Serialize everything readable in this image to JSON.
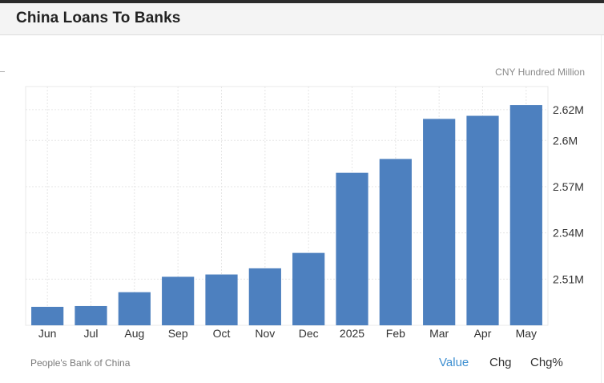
{
  "header": {
    "title": "China Loans To Banks"
  },
  "unit_label": "CNY Hundred Million",
  "source": "People's Bank of China",
  "tabs": [
    {
      "label": "Value",
      "active": true
    },
    {
      "label": "Chg",
      "active": false
    },
    {
      "label": "Chg%",
      "active": false
    }
  ],
  "colors": {
    "bar": "#4d80bf",
    "active_tab": "#3d8fd1",
    "grid": "#e6e6e6"
  },
  "chart_data": {
    "type": "bar",
    "title": "China Loans To Banks",
    "ylabel": "CNY Hundred Million",
    "categories": [
      "Jun",
      "Jul",
      "Aug",
      "Sep",
      "Oct",
      "Nov",
      "Dec",
      "2025",
      "Feb",
      "Mar",
      "Apr",
      "May"
    ],
    "values": [
      2492000,
      2492500,
      2501500,
      2511500,
      2513000,
      2517000,
      2527000,
      2579000,
      2588000,
      2614000,
      2616000,
      2623000
    ],
    "yticks": [
      2510000,
      2540000,
      2570000,
      2600000,
      2620000
    ],
    "ytick_labels": [
      "2.51M",
      "2.54M",
      "2.57M",
      "2.6M",
      "2.62M"
    ],
    "ylim": [
      2480000,
      2635000
    ],
    "grid": true,
    "y_axis_side": "right"
  }
}
